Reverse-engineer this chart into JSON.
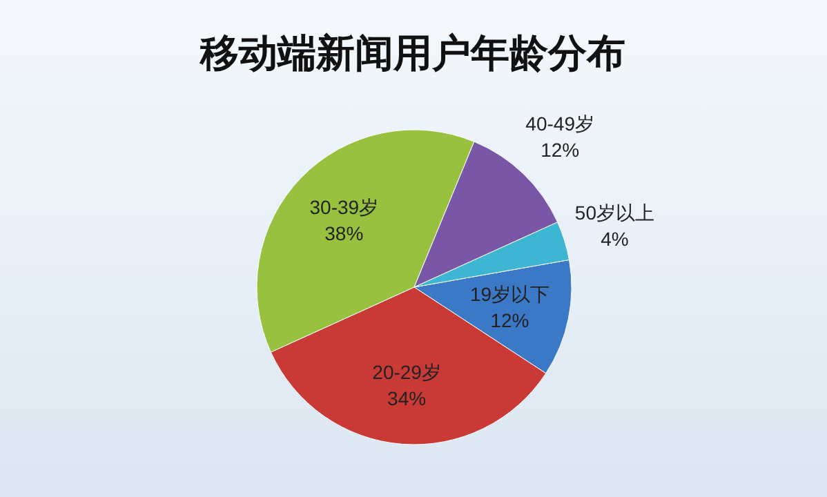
{
  "chart_data": {
    "type": "pie",
    "title": "移动端新闻用户年龄分布",
    "categories": [
      "19岁以下",
      "20-29岁",
      "30-39岁",
      "40-49岁",
      "50岁以上"
    ],
    "values": [
      12,
      34,
      38,
      12,
      4
    ],
    "colors": [
      "#3b78c6",
      "#c93a37",
      "#97c13f",
      "#7a56a6",
      "#3db5d3"
    ],
    "value_labels": [
      "12%",
      "34%",
      "38%",
      "12%",
      "4%"
    ]
  }
}
